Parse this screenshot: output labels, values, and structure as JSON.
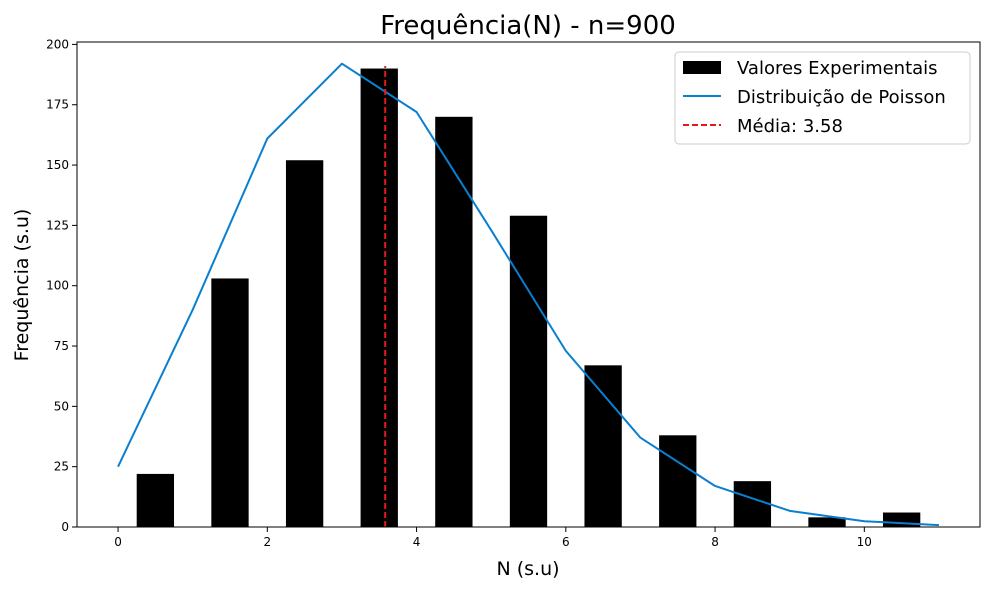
{
  "chart_data": {
    "type": "bar",
    "title": "Frequência(N) - n=900",
    "xlabel": "N (s.u)",
    "ylabel": "Frequência (s.u)",
    "xlim": [
      -0.55,
      11.55
    ],
    "ylim": [
      0,
      201
    ],
    "xticks": [
      0,
      2,
      4,
      6,
      8,
      10
    ],
    "yticks": [
      0,
      25,
      50,
      75,
      100,
      125,
      150,
      175,
      200
    ],
    "grid": false,
    "legend_position": "top-right",
    "bars": {
      "name": "Valores Experimentais",
      "color": "#000000",
      "x": [
        0.5,
        1.5,
        2.5,
        3.5,
        4.5,
        5.5,
        6.5,
        7.5,
        8.5,
        9.5,
        10.5
      ],
      "values": [
        22,
        103,
        152,
        190,
        170,
        129,
        67,
        38,
        19,
        4,
        6
      ]
    },
    "line": {
      "name": "Distribuição de Poisson",
      "color": "#0a7fd0",
      "x": [
        0,
        1,
        2,
        3,
        4,
        5,
        6,
        7,
        8,
        9,
        10,
        11
      ],
      "values": [
        25,
        90,
        161,
        192,
        172,
        123,
        73,
        37,
        17,
        6.7,
        2.4,
        0.8
      ]
    },
    "mean_line": {
      "name": "Média: 3.58",
      "color": "#e31a1c",
      "x": 3.58
    }
  }
}
